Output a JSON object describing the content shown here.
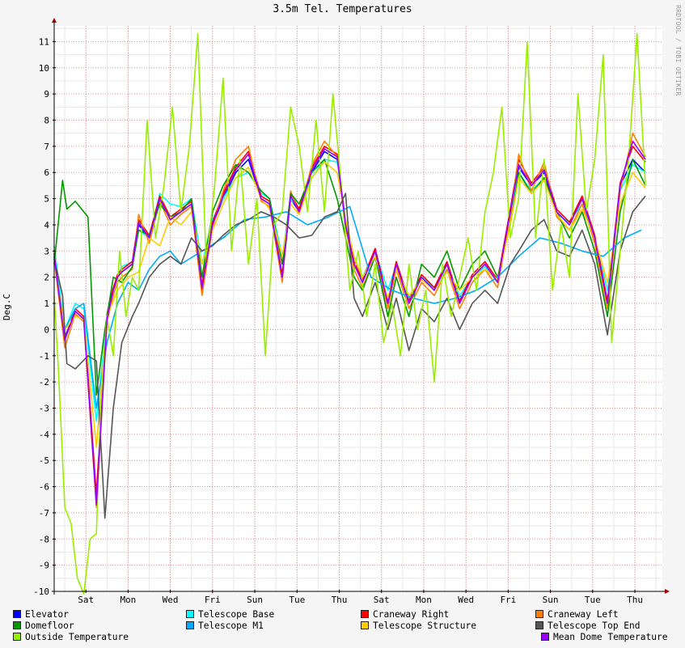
{
  "chart_data": {
    "type": "line",
    "title": "3.5m Tel. Temperatures",
    "ylabel": "Deg.C",
    "xlabel": "",
    "watermark": "RRDTOOL / TOBI OETIKER",
    "ylim": [
      -10,
      11.6
    ],
    "yticks": [
      11,
      10,
      9,
      8,
      7,
      6,
      5,
      4,
      3,
      2,
      1,
      0,
      -1,
      -2,
      -3,
      -4,
      -5,
      -6,
      -7,
      -8,
      -9,
      -10
    ],
    "x_range_days": [
      0,
      14.4
    ],
    "x_ticks": [
      {
        "day": 0.75,
        "label": "Sat"
      },
      {
        "day": 1.75,
        "label": "Mon"
      },
      {
        "day": 2.75,
        "label": "Wed"
      },
      {
        "day": 3.75,
        "label": "Fri"
      },
      {
        "day": 4.75,
        "label": "Sun"
      },
      {
        "day": 5.75,
        "label": "Tue"
      },
      {
        "day": 6.75,
        "label": "Thu"
      },
      {
        "day": 7.75,
        "label": "Sat"
      },
      {
        "day": 8.75,
        "label": "Mon"
      },
      {
        "day": 9.75,
        "label": "Wed"
      },
      {
        "day": 10.75,
        "label": "Fri"
      },
      {
        "day": 11.75,
        "label": "Sun"
      },
      {
        "day": 12.75,
        "label": "Tue"
      },
      {
        "day": 13.75,
        "label": "Thu"
      }
    ],
    "grid": true,
    "legend_position": "bottom",
    "series": [
      {
        "name": "Elevator",
        "color": "#0000ff",
        "x": [
          0,
          0.25,
          0.5,
          0.7,
          1.0,
          1.25,
          1.4,
          1.5,
          1.6,
          1.85,
          2.0,
          2.25,
          2.5,
          2.75,
          3.0,
          3.25,
          3.5,
          3.75,
          4.0,
          4.3,
          4.6,
          4.9,
          5.1,
          5.4,
          5.6,
          5.8,
          6.1,
          6.4,
          6.7,
          6.9,
          7.1,
          7.3,
          7.6,
          7.9,
          8.1,
          8.4,
          8.7,
          9.0,
          9.3,
          9.6,
          9.9,
          10.2,
          10.5,
          10.8,
          11.0,
          11.3,
          11.6,
          11.9,
          12.2,
          12.5,
          12.8,
          13.1,
          13.4,
          13.7,
          14.0
        ],
        "y": [
          2.8,
          -0.3,
          0.7,
          0.4,
          -6.5,
          0.5,
          1.5,
          2.0,
          2.2,
          2.5,
          4.0,
          3.5,
          5.0,
          4.2,
          4.5,
          4.8,
          1.5,
          4.0,
          5.0,
          6.0,
          6.5,
          5.0,
          4.8,
          2.0,
          5.0,
          4.5,
          6.0,
          6.8,
          6.5,
          4.0,
          2.5,
          1.8,
          3.0,
          1.0,
          2.5,
          1.0,
          2.0,
          1.5,
          2.5,
          1.0,
          2.0,
          2.5,
          1.8,
          4.5,
          6.2,
          5.5,
          6.0,
          4.5,
          4.0,
          5.0,
          3.5,
          1.0,
          5.5,
          6.5,
          6.0
        ]
      },
      {
        "name": "Telescope Base",
        "color": "#00ffff",
        "x": [
          0,
          0.25,
          0.5,
          0.7,
          1.0,
          1.25,
          1.4,
          1.5,
          1.6,
          1.85,
          2.0,
          2.25,
          2.5,
          2.75,
          3.0,
          3.25,
          3.5,
          3.75,
          4.0,
          4.3,
          4.6,
          4.9,
          5.1,
          5.4,
          5.6,
          5.8,
          6.1,
          6.4,
          6.7,
          6.9,
          7.1,
          7.3,
          7.6,
          7.9,
          8.1,
          8.4,
          8.7,
          9.0,
          9.3,
          9.6,
          9.9,
          10.2,
          10.5,
          10.8,
          11.0,
          11.3,
          11.6,
          11.9,
          12.2,
          12.5,
          12.8,
          13.1,
          13.4,
          13.7,
          14.0
        ],
        "y": [
          3.2,
          0.0,
          1.0,
          0.8,
          -3.5,
          0.5,
          1.5,
          2.0,
          2.4,
          2.6,
          3.8,
          3.5,
          5.2,
          4.8,
          4.7,
          5.0,
          2.5,
          4.2,
          5.0,
          5.8,
          6.0,
          5.2,
          5.0,
          2.8,
          5.0,
          4.6,
          5.8,
          6.5,
          6.4,
          4.2,
          2.8,
          2.0,
          3.0,
          1.5,
          2.5,
          1.2,
          2.0,
          1.6,
          2.3,
          1.3,
          2.0,
          2.4,
          1.8,
          4.3,
          6.0,
          5.3,
          5.8,
          4.4,
          4.1,
          4.8,
          3.5,
          1.5,
          5.3,
          6.3,
          6.0
        ]
      },
      {
        "name": "Craneway Right",
        "color": "#ff0000",
        "x": [
          0,
          0.25,
          0.5,
          0.7,
          1.0,
          1.25,
          1.4,
          1.5,
          1.6,
          1.85,
          2.0,
          2.25,
          2.5,
          2.75,
          3.0,
          3.25,
          3.5,
          3.75,
          4.0,
          4.3,
          4.6,
          4.9,
          5.1,
          5.4,
          5.6,
          5.8,
          6.1,
          6.4,
          6.7,
          6.9,
          7.1,
          7.3,
          7.6,
          7.9,
          8.1,
          8.4,
          8.7,
          9.0,
          9.3,
          9.6,
          9.9,
          10.2,
          10.5,
          10.8,
          11.0,
          11.3,
          11.6,
          11.9,
          12.2,
          12.5,
          12.8,
          13.1,
          13.4,
          13.7,
          14.0
        ],
        "y": [
          2.9,
          -0.4,
          0.8,
          0.5,
          -6.3,
          0.6,
          1.6,
          2.1,
          2.3,
          2.6,
          4.2,
          3.6,
          5.1,
          4.3,
          4.6,
          4.9,
          1.7,
          4.1,
          5.2,
          6.2,
          6.8,
          5.1,
          4.9,
          2.1,
          5.2,
          4.6,
          6.2,
          7.0,
          6.7,
          4.1,
          2.6,
          1.9,
          3.1,
          1.1,
          2.6,
          1.1,
          2.1,
          1.6,
          2.6,
          1.1,
          2.1,
          2.6,
          1.9,
          4.6,
          6.5,
          5.6,
          6.2,
          4.6,
          4.1,
          5.1,
          3.6,
          1.1,
          5.6,
          7.0,
          6.4
        ]
      },
      {
        "name": "Craneway Left",
        "color": "#ff8000",
        "x": [
          0,
          0.25,
          0.5,
          0.7,
          1.0,
          1.25,
          1.4,
          1.5,
          1.6,
          1.85,
          2.0,
          2.25,
          2.5,
          2.75,
          3.0,
          3.25,
          3.5,
          3.75,
          4.0,
          4.3,
          4.6,
          4.9,
          5.1,
          5.4,
          5.6,
          5.8,
          6.1,
          6.4,
          6.7,
          6.9,
          7.1,
          7.3,
          7.6,
          7.9,
          8.1,
          8.4,
          8.7,
          9.0,
          9.3,
          9.6,
          9.9,
          10.2,
          10.5,
          10.8,
          11.0,
          11.3,
          11.6,
          11.9,
          12.2,
          12.5,
          12.8,
          13.1,
          13.4,
          13.7,
          14.0
        ],
        "y": [
          2.7,
          -0.7,
          0.6,
          0.3,
          -6.8,
          0.3,
          1.3,
          1.8,
          2.0,
          2.3,
          4.4,
          3.3,
          4.9,
          4.0,
          4.4,
          4.7,
          1.3,
          3.9,
          5.3,
          6.5,
          7.0,
          4.9,
          4.7,
          1.8,
          5.3,
          4.4,
          6.3,
          7.2,
          6.6,
          3.9,
          2.3,
          1.6,
          2.8,
          0.8,
          2.3,
          0.8,
          1.8,
          1.3,
          2.3,
          0.8,
          1.8,
          2.3,
          1.6,
          4.3,
          6.7,
          5.3,
          6.4,
          4.3,
          3.8,
          4.8,
          3.3,
          0.8,
          5.3,
          7.5,
          6.6
        ]
      },
      {
        "name": "Domefloor",
        "color": "#009900",
        "x": [
          0,
          0.2,
          0.3,
          0.5,
          0.8,
          1.0,
          1.2,
          1.4,
          1.6,
          1.85,
          2.0,
          2.25,
          2.5,
          2.75,
          3.0,
          3.25,
          3.5,
          3.75,
          4.0,
          4.3,
          4.6,
          4.9,
          5.1,
          5.4,
          5.6,
          5.8,
          6.1,
          6.4,
          6.7,
          6.9,
          7.1,
          7.3,
          7.6,
          7.9,
          8.1,
          8.4,
          8.7,
          9.0,
          9.3,
          9.6,
          9.9,
          10.2,
          10.5,
          10.8,
          11.0,
          11.3,
          11.6,
          11.9,
          12.2,
          12.5,
          12.8,
          13.1,
          13.4,
          13.7,
          14.0
        ],
        "y": [
          2.5,
          5.7,
          4.6,
          4.9,
          4.3,
          -2.5,
          0.0,
          2.0,
          1.8,
          2.4,
          3.8,
          3.6,
          4.8,
          4.3,
          4.5,
          5.0,
          2.0,
          4.5,
          5.5,
          6.3,
          6.0,
          5.3,
          5.0,
          2.5,
          5.2,
          4.8,
          6.0,
          6.5,
          5.0,
          3.5,
          2.0,
          1.5,
          2.8,
          0.5,
          2.0,
          0.5,
          2.5,
          2.0,
          3.0,
          1.5,
          2.5,
          3.0,
          2.0,
          4.0,
          6.0,
          5.2,
          5.8,
          4.5,
          3.5,
          4.5,
          3.0,
          0.5,
          4.5,
          6.5,
          5.5
        ]
      },
      {
        "name": "Telescope M1",
        "color": "#00aaff",
        "x": [
          0,
          0.25,
          0.5,
          0.7,
          1.0,
          1.25,
          1.5,
          1.75,
          2.0,
          2.25,
          2.5,
          2.75,
          3.0,
          3.5,
          4.0,
          4.5,
          5.0,
          5.5,
          6.0,
          6.5,
          7.0,
          7.5,
          8.0,
          8.5,
          9.0,
          9.5,
          10.0,
          10.5,
          11.0,
          11.5,
          12.0,
          12.5,
          13.0,
          13.5,
          13.9
        ],
        "y": [
          2.7,
          0.0,
          0.8,
          1.0,
          -3.0,
          -0.5,
          1.0,
          1.8,
          1.5,
          2.3,
          2.8,
          3.0,
          2.5,
          3.0,
          3.5,
          4.2,
          4.3,
          4.5,
          4.0,
          4.3,
          4.7,
          2.0,
          1.5,
          1.2,
          1.0,
          1.2,
          1.5,
          2.0,
          2.8,
          3.5,
          3.3,
          3.0,
          2.8,
          3.5,
          3.8
        ]
      },
      {
        "name": "Telescope Structure",
        "color": "#ffcc00",
        "x": [
          0,
          0.25,
          0.5,
          0.7,
          1.0,
          1.25,
          1.5,
          1.75,
          2.0,
          2.25,
          2.5,
          2.75,
          3.0,
          3.25,
          3.5,
          3.75,
          4.0,
          4.3,
          4.6,
          4.9,
          5.1,
          5.4,
          5.6,
          5.8,
          6.1,
          6.4,
          6.7,
          6.9,
          7.1,
          7.3,
          7.6,
          7.9,
          8.1,
          8.4,
          8.7,
          9.0,
          9.3,
          9.6,
          9.9,
          10.2,
          10.5,
          10.8,
          11.0,
          11.3,
          11.6,
          11.9,
          12.2,
          12.5,
          12.8,
          13.1,
          13.4,
          13.7,
          14.0
        ],
        "y": [
          2.6,
          0.0,
          0.5,
          0.4,
          -4.5,
          0.5,
          1.5,
          2.0,
          2.2,
          3.5,
          3.2,
          4.3,
          4.0,
          4.5,
          2.5,
          3.8,
          4.8,
          5.8,
          6.2,
          5.0,
          4.6,
          2.8,
          4.8,
          4.4,
          5.8,
          6.4,
          6.0,
          4.2,
          2.8,
          2.0,
          2.8,
          1.2,
          2.3,
          1.3,
          1.9,
          1.5,
          2.2,
          1.5,
          2.0,
          2.3,
          1.9,
          4.0,
          5.8,
          5.2,
          5.7,
          4.4,
          3.8,
          4.6,
          3.5,
          1.8,
          4.8,
          6.0,
          5.4
        ]
      },
      {
        "name": "Telescope Top End",
        "color": "#555555",
        "x": [
          0,
          0.2,
          0.3,
          0.5,
          0.8,
          1.0,
          1.2,
          1.4,
          1.6,
          1.85,
          2.0,
          2.25,
          2.5,
          2.75,
          3.0,
          3.25,
          3.5,
          3.75,
          4.0,
          4.3,
          4.6,
          4.9,
          5.2,
          5.5,
          5.8,
          6.1,
          6.4,
          6.7,
          6.9,
          7.1,
          7.3,
          7.6,
          7.9,
          8.1,
          8.4,
          8.7,
          9.0,
          9.3,
          9.6,
          9.9,
          10.2,
          10.5,
          10.8,
          11.0,
          11.3,
          11.6,
          11.9,
          12.2,
          12.5,
          12.8,
          13.1,
          13.4,
          13.7,
          14.0
        ],
        "y": [
          2.7,
          1.3,
          -1.3,
          -1.5,
          -1.0,
          -1.2,
          -7.2,
          -3.0,
          -0.5,
          0.5,
          1.0,
          2.0,
          2.5,
          2.8,
          2.5,
          3.5,
          3.0,
          3.2,
          3.6,
          4.0,
          4.2,
          4.5,
          4.3,
          4.0,
          3.5,
          3.6,
          4.3,
          4.5,
          5.2,
          1.2,
          0.5,
          1.8,
          0.0,
          1.2,
          -0.8,
          0.8,
          0.3,
          1.2,
          0.0,
          1.0,
          1.5,
          1.0,
          2.5,
          3.0,
          3.8,
          4.2,
          3.0,
          2.8,
          3.8,
          2.5,
          -0.2,
          3.0,
          4.5,
          5.1
        ]
      },
      {
        "name": "Outside Temperature",
        "color": "#99ee00",
        "x": [
          0,
          0.1,
          0.25,
          0.4,
          0.55,
          0.7,
          0.85,
          1.0,
          1.1,
          1.25,
          1.4,
          1.55,
          1.7,
          1.85,
          2.0,
          2.2,
          2.4,
          2.6,
          2.8,
          3.0,
          3.2,
          3.4,
          3.6,
          3.8,
          4.0,
          4.2,
          4.4,
          4.6,
          4.8,
          5.0,
          5.2,
          5.4,
          5.6,
          5.8,
          6.0,
          6.2,
          6.4,
          6.6,
          6.8,
          7.0,
          7.2,
          7.4,
          7.6,
          7.8,
          8.0,
          8.2,
          8.4,
          8.6,
          8.8,
          9.0,
          9.2,
          9.4,
          9.6,
          9.8,
          10.0,
          10.2,
          10.4,
          10.6,
          10.8,
          11.0,
          11.2,
          11.4,
          11.6,
          11.8,
          12.0,
          12.2,
          12.4,
          12.6,
          12.8,
          13.0,
          13.2,
          13.4,
          13.6,
          13.8,
          14.0
        ],
        "y": [
          1.3,
          -1.5,
          -6.8,
          -7.4,
          -9.5,
          -10.1,
          -8.0,
          -7.8,
          -3.0,
          0.5,
          -1.0,
          3.0,
          0.5,
          2.0,
          1.5,
          8.0,
          3.5,
          5.5,
          8.5,
          4.5,
          7.0,
          11.3,
          2.5,
          5.5,
          9.6,
          3.0,
          6.5,
          2.5,
          5.0,
          -1.0,
          4.0,
          4.5,
          8.5,
          7.0,
          4.5,
          8.0,
          4.5,
          9.0,
          5.5,
          1.5,
          3.0,
          0.5,
          2.5,
          -0.5,
          1.0,
          -1.0,
          2.5,
          0.0,
          1.5,
          -2.0,
          2.5,
          0.5,
          2.0,
          3.5,
          1.5,
          4.5,
          6.0,
          8.5,
          3.5,
          5.0,
          11.0,
          3.5,
          6.5,
          1.5,
          4.0,
          2.0,
          9.0,
          4.5,
          6.5,
          10.5,
          -0.5,
          3.0,
          6.5,
          11.3,
          5.5
        ]
      },
      {
        "name": "Mean Dome Temperature",
        "color": "#9900ff",
        "x": [
          0,
          0.25,
          0.5,
          0.7,
          1.0,
          1.25,
          1.4,
          1.5,
          1.6,
          1.85,
          2.0,
          2.25,
          2.5,
          2.75,
          3.0,
          3.25,
          3.5,
          3.75,
          4.0,
          4.3,
          4.6,
          4.9,
          5.1,
          5.4,
          5.6,
          5.8,
          6.1,
          6.4,
          6.7,
          6.9,
          7.1,
          7.3,
          7.6,
          7.9,
          8.1,
          8.4,
          8.7,
          9.0,
          9.3,
          9.6,
          9.9,
          10.2,
          10.5,
          10.8,
          11.0,
          11.3,
          11.6,
          11.9,
          12.2,
          12.5,
          12.8,
          13.1,
          13.4,
          13.7,
          14.0
        ],
        "y": [
          2.8,
          -0.4,
          0.7,
          0.4,
          -6.7,
          0.4,
          1.5,
          2.0,
          2.2,
          2.5,
          4.1,
          3.5,
          5.0,
          4.2,
          4.5,
          4.8,
          1.6,
          4.0,
          5.1,
          6.1,
          6.7,
          5.0,
          4.8,
          2.0,
          5.1,
          4.5,
          6.1,
          6.9,
          6.6,
          4.0,
          2.5,
          1.8,
          3.0,
          1.0,
          2.5,
          1.0,
          2.0,
          1.5,
          2.5,
          1.0,
          2.0,
          2.5,
          1.8,
          4.5,
          6.3,
          5.5,
          6.1,
          4.5,
          4.0,
          5.0,
          3.5,
          1.0,
          5.5,
          7.2,
          6.5
        ]
      }
    ]
  }
}
